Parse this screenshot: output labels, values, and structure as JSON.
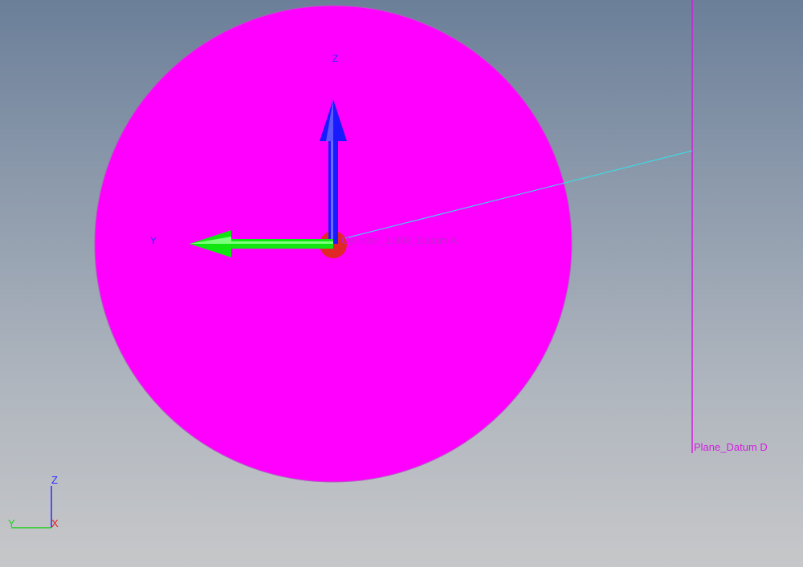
{
  "viewport": {
    "background_top": "#6b7f99",
    "background_bottom": "#c6c7c9"
  },
  "colors": {
    "cylinder": "#ff00ff",
    "plane": "#d21fe0",
    "axis_z": "#1a1aff",
    "axis_y": "#11e611",
    "origin": "#e02828",
    "leader": "#30e6f0",
    "triad_x": "#e0211f"
  },
  "axes": {
    "z_label": "Z",
    "y_label": "Y"
  },
  "features": {
    "cylinder_label": "Cylinder_1.993_Datum A",
    "plane_label": "Plane_Datum D"
  },
  "triad": {
    "z": "Z",
    "y": "Y",
    "x": "X"
  }
}
